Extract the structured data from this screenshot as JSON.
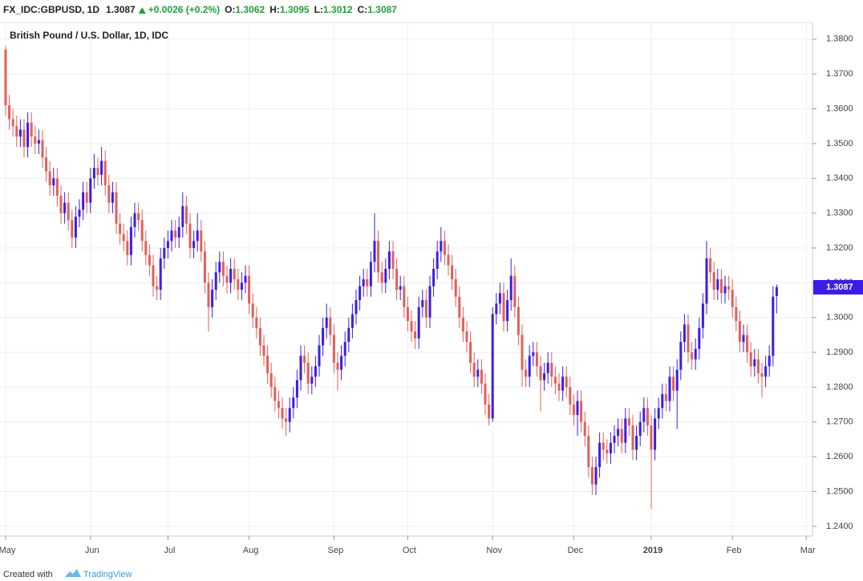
{
  "header": {
    "symbol": "FX_IDC:GBPUSD, 1D",
    "last": "1.3087",
    "change": "+0.0026 (+0.2%)",
    "fields": [
      {
        "label": "O:",
        "value": "1.3062"
      },
      {
        "label": "H:",
        "value": "1.3095"
      },
      {
        "label": "L:",
        "value": "1.3012"
      },
      {
        "label": "C:",
        "value": "1.3087"
      }
    ]
  },
  "chart_data": {
    "type": "candlestick",
    "title": "British Pound / U.S. Dollar, 1D, IDC",
    "up_color": "#3a1ee6",
    "down_color": "#e35f59",
    "grid": true,
    "ylim": [
      1.2372,
      1.3848
    ],
    "yticks": [
      {
        "value": 1.24,
        "label": "1.2400"
      },
      {
        "value": 1.25,
        "label": "1.2500"
      },
      {
        "value": 1.26,
        "label": "1.2600"
      },
      {
        "value": 1.27,
        "label": "1.2700"
      },
      {
        "value": 1.28,
        "label": "1.2800"
      },
      {
        "value": 1.29,
        "label": "1.2900"
      },
      {
        "value": 1.3,
        "label": "1.3000"
      },
      {
        "value": 1.31,
        "label": "1.3100"
      },
      {
        "value": 1.32,
        "label": "1.3200"
      },
      {
        "value": 1.33,
        "label": "1.3300"
      },
      {
        "value": 1.34,
        "label": "1.3400"
      },
      {
        "value": 1.35,
        "label": "1.3500"
      },
      {
        "value": 1.36,
        "label": "1.3600"
      },
      {
        "value": 1.37,
        "label": "1.3700"
      },
      {
        "value": 1.38,
        "label": "1.3800"
      }
    ],
    "categories": [
      "May",
      null,
      null,
      null,
      null,
      null,
      null,
      null,
      null,
      null,
      null,
      null,
      null,
      null,
      null,
      null,
      null,
      null,
      null,
      null,
      null,
      null,
      null,
      "Jun",
      null,
      null,
      null,
      null,
      null,
      null,
      null,
      null,
      null,
      null,
      null,
      null,
      null,
      null,
      null,
      null,
      null,
      null,
      null,
      null,
      "Jul",
      null,
      null,
      null,
      null,
      null,
      null,
      null,
      null,
      null,
      null,
      null,
      null,
      null,
      null,
      null,
      null,
      null,
      null,
      null,
      null,
      null,
      "Aug",
      null,
      null,
      null,
      null,
      null,
      null,
      null,
      null,
      null,
      null,
      null,
      null,
      null,
      null,
      null,
      null,
      null,
      null,
      null,
      null,
      null,
      null,
      "Sep",
      null,
      null,
      null,
      null,
      null,
      null,
      null,
      null,
      null,
      null,
      null,
      null,
      null,
      null,
      null,
      null,
      null,
      null,
      null,
      "Oct",
      null,
      null,
      null,
      null,
      null,
      null,
      null,
      null,
      null,
      null,
      null,
      null,
      null,
      null,
      null,
      null,
      null,
      null,
      null,
      null,
      null,
      null,
      "Nov",
      null,
      null,
      null,
      null,
      null,
      null,
      null,
      null,
      null,
      null,
      null,
      null,
      null,
      null,
      null,
      null,
      null,
      null,
      null,
      null,
      null,
      "Dec",
      null,
      null,
      null,
      null,
      null,
      null,
      null,
      null,
      null,
      null,
      null,
      null,
      null,
      null,
      null,
      null,
      null,
      null,
      null,
      null,
      "2019",
      null,
      null,
      null,
      null,
      null,
      null,
      null,
      null,
      null,
      null,
      null,
      null,
      null,
      null,
      null,
      null,
      null,
      null,
      null,
      null,
      null,
      "Feb",
      null,
      null,
      null,
      null,
      null,
      null,
      null,
      null,
      null,
      null,
      null,
      null,
      null,
      null,
      null,
      null,
      null,
      null,
      null,
      "Mar"
    ],
    "open": [
      1.377,
      1.361,
      1.357,
      1.355,
      1.352,
      1.354,
      1.349,
      1.356,
      1.352,
      1.35,
      1.351,
      1.346,
      1.342,
      1.338,
      1.34,
      1.335,
      1.33,
      1.333,
      1.328,
      1.323,
      1.329,
      1.331,
      1.336,
      1.333,
      1.34,
      1.343,
      1.341,
      1.345,
      1.338,
      1.333,
      1.336,
      1.327,
      1.324,
      1.322,
      1.318,
      1.326,
      1.33,
      1.328,
      1.322,
      1.318,
      1.315,
      1.309,
      1.308,
      1.317,
      1.32,
      1.322,
      1.325,
      1.323,
      1.326,
      1.332,
      1.327,
      1.32,
      1.322,
      1.325,
      1.319,
      1.31,
      1.303,
      1.308,
      1.313,
      1.316,
      1.312,
      1.31,
      1.314,
      1.311,
      1.308,
      1.31,
      1.312,
      1.304,
      1.3,
      1.297,
      1.292,
      1.289,
      1.284,
      1.28,
      1.276,
      1.274,
      1.271,
      1.27,
      1.274,
      1.277,
      1.282,
      1.289,
      1.287,
      1.281,
      1.283,
      1.286,
      1.292,
      1.297,
      1.3,
      1.295,
      1.287,
      1.285,
      1.289,
      1.293,
      1.297,
      1.301,
      1.305,
      1.309,
      1.311,
      1.309,
      1.316,
      1.322,
      1.313,
      1.31,
      1.314,
      1.319,
      1.314,
      1.308,
      1.309,
      1.303,
      1.299,
      1.296,
      1.294,
      1.303,
      1.305,
      1.3,
      1.309,
      1.314,
      1.319,
      1.322,
      1.318,
      1.315,
      1.311,
      1.306,
      1.3,
      1.296,
      1.293,
      1.287,
      1.283,
      1.285,
      1.281,
      1.275,
      1.271,
      1.301,
      1.304,
      1.307,
      1.299,
      1.305,
      1.312,
      1.303,
      1.295,
      1.285,
      1.283,
      1.289,
      1.29,
      1.286,
      1.282,
      1.284,
      1.287,
      1.283,
      1.281,
      1.279,
      1.283,
      1.28,
      1.275,
      1.272,
      1.276,
      1.27,
      1.266,
      1.257,
      1.252,
      1.257,
      1.264,
      1.262,
      1.261,
      1.264,
      1.266,
      1.268,
      1.264,
      1.271,
      1.269,
      1.262,
      1.266,
      1.27,
      1.274,
      1.269,
      1.262,
      1.271,
      1.274,
      1.278,
      1.276,
      1.283,
      1.279,
      1.285,
      1.293,
      1.298,
      1.29,
      1.288,
      1.291,
      1.297,
      1.304,
      1.317,
      1.313,
      1.308,
      1.311,
      1.307,
      1.309,
      1.308,
      1.303,
      1.299,
      1.293,
      1.295,
      1.29,
      1.286,
      1.288,
      1.284,
      1.283,
      1.286,
      1.289,
      1.3062,
      null,
      null,
      null,
      null,
      null,
      null,
      null,
      null
    ],
    "high": [
      1.378,
      1.364,
      1.36,
      1.358,
      1.357,
      1.357,
      1.359,
      1.359,
      1.355,
      1.354,
      1.354,
      1.349,
      1.345,
      1.343,
      1.343,
      1.338,
      1.336,
      1.336,
      1.331,
      1.332,
      1.334,
      1.339,
      1.339,
      1.343,
      1.347,
      1.346,
      1.349,
      1.348,
      1.341,
      1.339,
      1.339,
      1.33,
      1.327,
      1.325,
      1.329,
      1.333,
      1.333,
      1.331,
      1.325,
      1.321,
      1.318,
      1.312,
      1.32,
      1.323,
      1.325,
      1.328,
      1.328,
      1.329,
      1.336,
      1.335,
      1.33,
      1.325,
      1.33,
      1.328,
      1.322,
      1.313,
      1.311,
      1.316,
      1.319,
      1.319,
      1.315,
      1.317,
      1.317,
      1.314,
      1.313,
      1.315,
      1.315,
      1.307,
      1.303,
      1.3,
      1.295,
      1.292,
      1.287,
      1.283,
      1.279,
      1.277,
      1.274,
      1.277,
      1.28,
      1.285,
      1.292,
      1.292,
      1.29,
      1.286,
      1.289,
      1.295,
      1.3,
      1.304,
      1.303,
      1.298,
      1.29,
      1.292,
      1.296,
      1.3,
      1.304,
      1.308,
      1.312,
      1.314,
      1.314,
      1.319,
      1.33,
      1.325,
      1.316,
      1.317,
      1.322,
      1.322,
      1.317,
      1.312,
      1.312,
      1.306,
      1.302,
      1.299,
      1.306,
      1.308,
      1.308,
      1.312,
      1.317,
      1.322,
      1.326,
      1.325,
      1.321,
      1.318,
      1.314,
      1.309,
      1.303,
      1.299,
      1.296,
      1.29,
      1.288,
      1.288,
      1.284,
      1.278,
      1.303,
      1.307,
      1.31,
      1.31,
      1.308,
      1.317,
      1.315,
      1.306,
      1.298,
      1.288,
      1.292,
      1.293,
      1.293,
      1.289,
      1.287,
      1.29,
      1.29,
      1.286,
      1.284,
      1.286,
      1.286,
      1.283,
      1.278,
      1.279,
      1.279,
      1.273,
      1.269,
      1.26,
      1.26,
      1.267,
      1.267,
      1.265,
      1.267,
      1.269,
      1.271,
      1.271,
      1.274,
      1.274,
      1.272,
      1.269,
      1.273,
      1.277,
      1.277,
      1.272,
      1.274,
      1.277,
      1.281,
      1.281,
      1.286,
      1.286,
      1.288,
      1.296,
      1.301,
      1.301,
      1.293,
      1.294,
      1.3,
      1.307,
      1.322,
      1.32,
      1.316,
      1.314,
      1.314,
      1.312,
      1.312,
      1.311,
      1.306,
      1.302,
      1.298,
      1.298,
      1.293,
      1.291,
      1.291,
      1.287,
      1.289,
      1.292,
      1.309,
      1.3095,
      null,
      null,
      null,
      null,
      null,
      null,
      null,
      null
    ],
    "low": [
      1.358,
      1.354,
      1.352,
      1.349,
      1.349,
      1.346,
      1.346,
      1.349,
      1.347,
      1.347,
      1.343,
      1.339,
      1.335,
      1.335,
      1.332,
      1.327,
      1.327,
      1.325,
      1.32,
      1.32,
      1.326,
      1.328,
      1.33,
      1.33,
      1.337,
      1.338,
      1.338,
      1.335,
      1.33,
      1.33,
      1.324,
      1.321,
      1.319,
      1.315,
      1.315,
      1.323,
      1.325,
      1.319,
      1.315,
      1.312,
      1.306,
      1.305,
      1.305,
      1.314,
      1.317,
      1.319,
      1.32,
      1.32,
      1.323,
      1.324,
      1.317,
      1.317,
      1.319,
      1.316,
      1.307,
      1.296,
      1.3,
      1.305,
      1.31,
      1.309,
      1.307,
      1.307,
      1.308,
      1.305,
      1.305,
      1.307,
      1.301,
      1.297,
      1.294,
      1.289,
      1.286,
      1.281,
      1.277,
      1.273,
      1.271,
      1.268,
      1.266,
      1.267,
      1.271,
      1.274,
      1.279,
      1.284,
      1.278,
      1.278,
      1.28,
      1.283,
      1.289,
      1.294,
      1.292,
      1.284,
      1.279,
      1.282,
      1.286,
      1.29,
      1.294,
      1.298,
      1.302,
      1.306,
      1.306,
      1.306,
      1.313,
      1.31,
      1.307,
      1.307,
      1.311,
      1.311,
      1.305,
      1.305,
      1.3,
      1.296,
      1.293,
      1.291,
      1.291,
      1.3,
      1.297,
      1.297,
      1.306,
      1.311,
      1.316,
      1.315,
      1.312,
      1.308,
      1.303,
      1.297,
      1.293,
      1.29,
      1.284,
      1.28,
      1.28,
      1.278,
      1.272,
      1.269,
      1.27,
      1.298,
      1.301,
      1.296,
      1.296,
      1.302,
      1.3,
      1.292,
      1.28,
      1.28,
      1.28,
      1.286,
      1.283,
      1.273,
      1.279,
      1.281,
      1.28,
      1.278,
      1.276,
      1.276,
      1.277,
      1.272,
      1.269,
      1.266,
      1.267,
      1.263,
      1.254,
      1.249,
      1.249,
      1.254,
      1.259,
      1.258,
      1.258,
      1.261,
      1.263,
      1.261,
      1.261,
      1.266,
      1.259,
      1.259,
      1.263,
      1.267,
      1.266,
      1.245,
      1.259,
      1.268,
      1.271,
      1.273,
      1.273,
      1.276,
      1.268,
      1.282,
      1.29,
      1.287,
      1.285,
      1.285,
      1.288,
      1.294,
      1.301,
      1.31,
      1.305,
      1.305,
      1.304,
      1.304,
      1.305,
      1.3,
      1.296,
      1.29,
      1.29,
      1.287,
      1.283,
      1.283,
      1.281,
      1.277,
      1.28,
      1.283,
      1.286,
      1.3012,
      null,
      null,
      null,
      null,
      null,
      null,
      null,
      null
    ],
    "close": [
      1.361,
      1.357,
      1.355,
      1.352,
      1.354,
      1.349,
      1.356,
      1.352,
      1.35,
      1.351,
      1.346,
      1.342,
      1.338,
      1.34,
      1.335,
      1.33,
      1.333,
      1.328,
      1.323,
      1.329,
      1.331,
      1.336,
      1.333,
      1.34,
      1.343,
      1.341,
      1.345,
      1.338,
      1.333,
      1.336,
      1.327,
      1.324,
      1.322,
      1.318,
      1.326,
      1.33,
      1.328,
      1.322,
      1.318,
      1.315,
      1.309,
      1.308,
      1.317,
      1.32,
      1.322,
      1.325,
      1.323,
      1.326,
      1.332,
      1.327,
      1.32,
      1.322,
      1.325,
      1.319,
      1.31,
      1.303,
      1.308,
      1.313,
      1.316,
      1.312,
      1.31,
      1.314,
      1.311,
      1.308,
      1.31,
      1.312,
      1.304,
      1.3,
      1.297,
      1.292,
      1.289,
      1.284,
      1.28,
      1.276,
      1.274,
      1.271,
      1.27,
      1.274,
      1.277,
      1.282,
      1.289,
      1.287,
      1.281,
      1.283,
      1.286,
      1.292,
      1.297,
      1.3,
      1.295,
      1.287,
      1.285,
      1.289,
      1.293,
      1.297,
      1.301,
      1.305,
      1.309,
      1.311,
      1.309,
      1.316,
      1.322,
      1.313,
      1.31,
      1.314,
      1.319,
      1.314,
      1.308,
      1.309,
      1.303,
      1.299,
      1.296,
      1.294,
      1.303,
      1.305,
      1.3,
      1.309,
      1.314,
      1.319,
      1.322,
      1.318,
      1.315,
      1.311,
      1.306,
      1.3,
      1.296,
      1.293,
      1.287,
      1.283,
      1.285,
      1.281,
      1.275,
      1.271,
      1.301,
      1.304,
      1.307,
      1.299,
      1.305,
      1.312,
      1.303,
      1.295,
      1.285,
      1.283,
      1.289,
      1.29,
      1.286,
      1.282,
      1.284,
      1.287,
      1.283,
      1.281,
      1.279,
      1.283,
      1.28,
      1.275,
      1.272,
      1.276,
      1.27,
      1.266,
      1.257,
      1.252,
      1.257,
      1.264,
      1.262,
      1.261,
      1.264,
      1.266,
      1.268,
      1.264,
      1.271,
      1.269,
      1.262,
      1.266,
      1.27,
      1.274,
      1.269,
      1.262,
      1.271,
      1.274,
      1.278,
      1.276,
      1.283,
      1.279,
      1.285,
      1.293,
      1.298,
      1.29,
      1.288,
      1.291,
      1.297,
      1.304,
      1.317,
      1.313,
      1.308,
      1.311,
      1.307,
      1.309,
      1.308,
      1.303,
      1.299,
      1.293,
      1.295,
      1.29,
      1.286,
      1.288,
      1.284,
      1.283,
      1.286,
      1.289,
      1.306,
      1.3087,
      null,
      null,
      null,
      null,
      null,
      null,
      null,
      null
    ]
  },
  "footer": {
    "text": "Created with",
    "brand": "TradingView"
  }
}
